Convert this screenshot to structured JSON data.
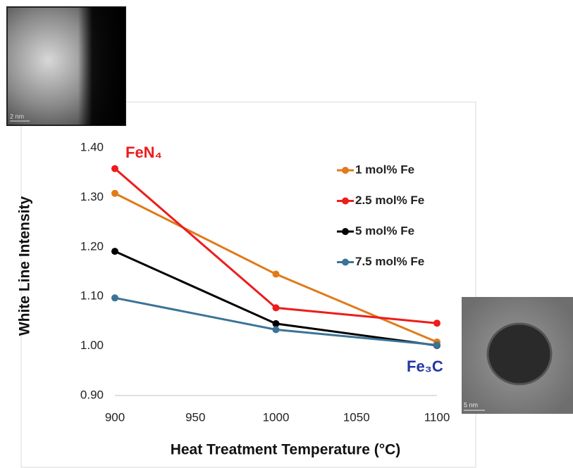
{
  "chart_data": {
    "type": "line",
    "y_label": "White Line Intensity",
    "x_label": "Heat Treatment Temperature (°C)",
    "x": [
      900,
      1000,
      1100
    ],
    "xlim": [
      900,
      1100
    ],
    "xticks": [
      900,
      950,
      1000,
      1050,
      1100
    ],
    "ylim": [
      0.9,
      1.4
    ],
    "yticks": [
      {
        "value": 0.9,
        "label": "0.90"
      },
      {
        "value": 1.0,
        "label": "1.00"
      },
      {
        "value": 1.1,
        "label": "1.10"
      },
      {
        "value": 1.2,
        "label": "1.20"
      },
      {
        "value": 1.3,
        "label": "1.30"
      },
      {
        "value": 1.4,
        "label": "1.40"
      }
    ],
    "grid": false,
    "legend": "right",
    "series": [
      {
        "name": "1 mol% Fe",
        "color": "#e07b1a",
        "values": [
          1.308,
          1.145,
          1.008
        ]
      },
      {
        "name": "2.5 mol% Fe",
        "color": "#ee1c1c",
        "values": [
          1.358,
          1.077,
          1.046
        ]
      },
      {
        "name": "5 mol% Fe",
        "color": "#000000",
        "values": [
          1.191,
          1.045,
          1.001
        ]
      },
      {
        "name": "7.5 mol% Fe",
        "color": "#3b7397",
        "values": [
          1.097,
          1.033,
          1.002
        ]
      }
    ],
    "annotations": [
      {
        "text": "FeN₄",
        "color": "#ee1c1c"
      },
      {
        "text": "Fe₃C",
        "color": "#2236a6"
      }
    ]
  },
  "micrographs": [
    {
      "scale_label": "2 nm"
    },
    {
      "scale_label": "5 nm"
    }
  ]
}
